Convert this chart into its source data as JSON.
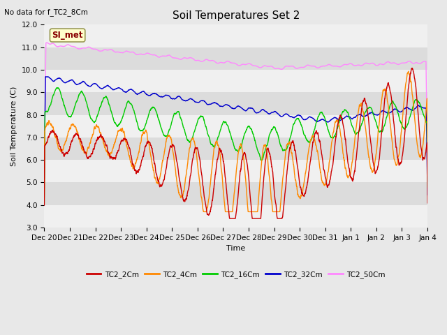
{
  "title": "Soil Temperatures Set 2",
  "subtitle": "No data for f_TC2_8Cm",
  "xlabel": "Time",
  "ylabel": "Soil Temperature (C)",
  "ylim": [
    3.0,
    12.0
  ],
  "yticks": [
    3.0,
    4.0,
    5.0,
    6.0,
    7.0,
    8.0,
    9.0,
    10.0,
    11.0,
    12.0
  ],
  "xtick_labels": [
    "Dec 20",
    "Dec 21",
    "Dec 22",
    "Dec 23",
    "Dec 24",
    "Dec 25",
    "Dec 26",
    "Dec 27",
    "Dec 28",
    "Dec 29",
    "Dec 30",
    "Dec 31",
    "Jan 1",
    "Jan 2",
    "Jan 3",
    "Jan 4"
  ],
  "legend_labels": [
    "TC2_2Cm",
    "TC2_4Cm",
    "TC2_16Cm",
    "TC2_32Cm",
    "TC2_50Cm"
  ],
  "line_colors": [
    "#cc0000",
    "#ff8800",
    "#00cc00",
    "#0000cc",
    "#ff88ff"
  ],
  "bg_color": "#e8e8e8",
  "stripe_light": "#f0f0f0",
  "stripe_dark": "#dcdcdc",
  "si_met_label": "SI_met",
  "si_met_bg": "#ffffcc",
  "si_met_fg": "#880000",
  "title_fontsize": 11,
  "label_fontsize": 8,
  "tick_fontsize": 7.5
}
